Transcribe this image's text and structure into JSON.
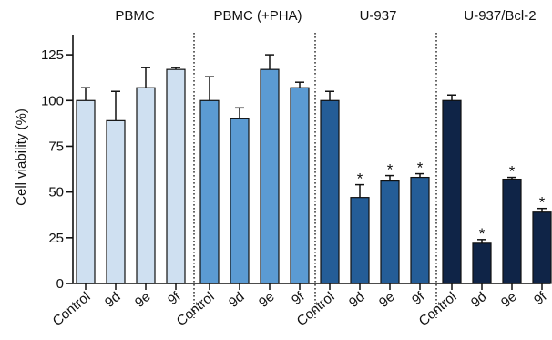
{
  "chart_data": {
    "type": "bar",
    "title": "",
    "ylabel": "Cell viability (%)",
    "xlabel": "",
    "ylim": [
      0,
      138
    ],
    "yticks": [
      0,
      25,
      50,
      75,
      100,
      125
    ],
    "ytick_labels": [
      "0",
      "25",
      "50",
      "75",
      "100",
      "125"
    ],
    "grid": false,
    "legend": "none",
    "groups": [
      {
        "name": "PBMC",
        "color": "#cfe0f1",
        "categories": [
          "Control",
          "9d",
          "9e",
          "9f"
        ],
        "values": [
          100,
          89,
          107,
          117
        ],
        "errors": [
          7,
          16,
          11,
          1
        ],
        "significant": [
          false,
          false,
          false,
          false
        ]
      },
      {
        "name": "PBMC (+PHA)",
        "color": "#5b9bd3",
        "categories": [
          "Control",
          "9d",
          "9e",
          "9f"
        ],
        "values": [
          100,
          90,
          117,
          107
        ],
        "errors": [
          13,
          6,
          8,
          3
        ],
        "significant": [
          false,
          false,
          false,
          false
        ]
      },
      {
        "name": "U-937",
        "color": "#245d97",
        "categories": [
          "Control",
          "9d",
          "9e",
          "9f"
        ],
        "values": [
          100,
          47,
          56,
          58
        ],
        "errors": [
          5,
          7,
          3,
          2
        ],
        "significant": [
          false,
          true,
          true,
          true
        ]
      },
      {
        "name": "U-937/Bcl-2",
        "color": "#0f2447",
        "categories": [
          "Control",
          "9d",
          "9e",
          "9f"
        ],
        "values": [
          100,
          22,
          57,
          39
        ],
        "errors": [
          3,
          2,
          1,
          2
        ],
        "significant": [
          false,
          true,
          true,
          true
        ]
      }
    ],
    "significance_marker": "*"
  }
}
